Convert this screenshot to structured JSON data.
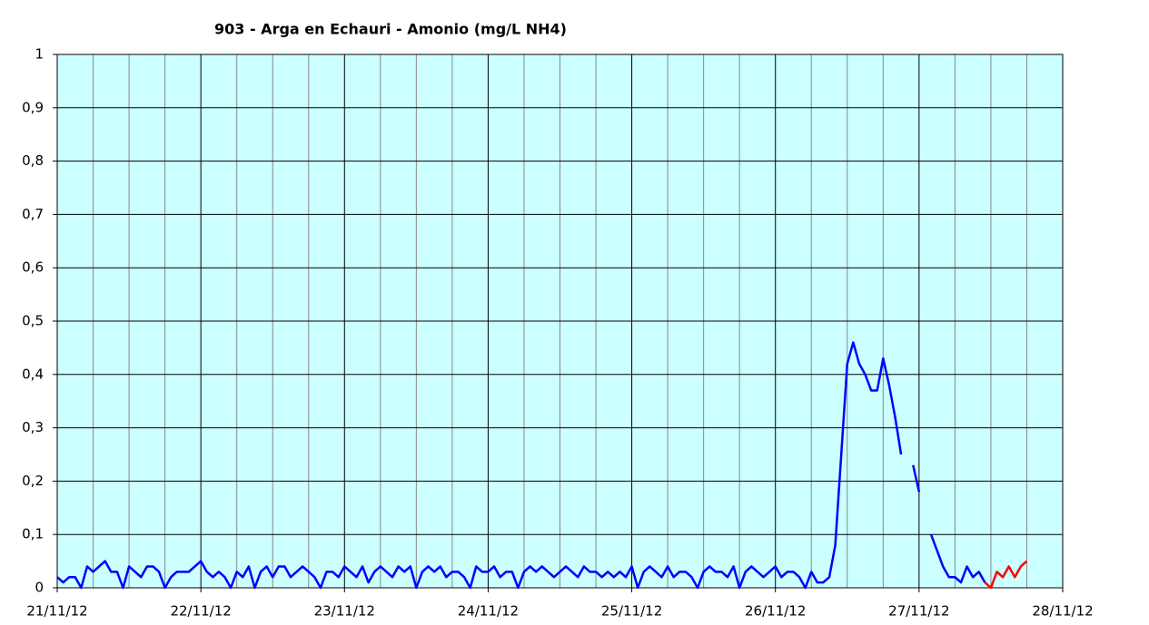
{
  "chart_data": {
    "type": "line",
    "title": "903 - Arga en Echauri - Amonio (mg/L NH4)",
    "background": "#ccffff",
    "grid": true,
    "xlim": [
      0,
      168
    ],
    "xticks": [
      {
        "value": 0,
        "label": "21/11/12"
      },
      {
        "value": 24,
        "label": "22/11/12"
      },
      {
        "value": 48,
        "label": "23/11/12"
      },
      {
        "value": 72,
        "label": "24/11/12"
      },
      {
        "value": 96,
        "label": "25/11/12"
      },
      {
        "value": 120,
        "label": "26/11/12"
      },
      {
        "value": 144,
        "label": "27/11/12"
      },
      {
        "value": 168,
        "label": "28/11/12"
      }
    ],
    "xminorticks": [
      6,
      12,
      18,
      30,
      36,
      42,
      54,
      60,
      66,
      78,
      84,
      90,
      102,
      108,
      114,
      126,
      132,
      138,
      150,
      156,
      162
    ],
    "ylim": [
      0,
      1
    ],
    "yticks": [
      0,
      {
        "value": 0.1,
        "label": "0,1"
      },
      {
        "value": 0.2,
        "label": "0,2"
      },
      {
        "value": 0.3,
        "label": "0,3"
      },
      {
        "value": 0.4,
        "label": "0,4"
      },
      {
        "value": 0.5,
        "label": "0,5"
      },
      {
        "value": 0.6,
        "label": "0,6"
      },
      {
        "value": 0.7,
        "label": "0,7"
      },
      {
        "value": 0.8,
        "label": "0,8"
      },
      {
        "value": 0.9,
        "label": "0,9"
      },
      1
    ],
    "series": [
      {
        "color": "#0000ff",
        "x": [
          0,
          1,
          2,
          3,
          4,
          5,
          6,
          7,
          8,
          9,
          10,
          11,
          12,
          13,
          14,
          15,
          16,
          17,
          18,
          19,
          20,
          21,
          22,
          23,
          24,
          25,
          26,
          27,
          28,
          29,
          30,
          31,
          32,
          33,
          34,
          35,
          36,
          37,
          38,
          39,
          40,
          41,
          42,
          43,
          44,
          45,
          46,
          47,
          48,
          49,
          50,
          51,
          52,
          53,
          54,
          55,
          56,
          57,
          58,
          59,
          60,
          61,
          62,
          63,
          64,
          65,
          66,
          67,
          68,
          69,
          70,
          71,
          72,
          73,
          74,
          75,
          76,
          77,
          78,
          79,
          80,
          81,
          82,
          83,
          84,
          85,
          86,
          87,
          88,
          89,
          90,
          91,
          92,
          93,
          94,
          95,
          96,
          97,
          98,
          99,
          100,
          101,
          102,
          103,
          104,
          105,
          106,
          107,
          108,
          109,
          110,
          111,
          112,
          113,
          114,
          115,
          116,
          117,
          118,
          119,
          120,
          121,
          122,
          123,
          124,
          125,
          126,
          127,
          128,
          129,
          130,
          131,
          132,
          133,
          134,
          135,
          136,
          137,
          138,
          139,
          140,
          141,
          142,
          143,
          144,
          145,
          146,
          147,
          148,
          149,
          150,
          151,
          152,
          153,
          154,
          155
        ],
        "values": [
          0.02,
          0.01,
          0.02,
          0.02,
          0.0,
          0.04,
          0.03,
          0.04,
          0.05,
          0.03,
          0.03,
          0.0,
          0.04,
          0.03,
          0.02,
          0.04,
          0.04,
          0.03,
          0.0,
          0.02,
          0.03,
          0.03,
          0.03,
          0.04,
          0.05,
          0.03,
          0.02,
          0.03,
          0.02,
          0.0,
          0.03,
          0.02,
          0.04,
          0.0,
          0.03,
          0.04,
          0.02,
          0.04,
          0.04,
          0.02,
          0.03,
          0.04,
          0.03,
          0.02,
          0.0,
          0.03,
          0.03,
          0.02,
          0.04,
          0.03,
          0.02,
          0.04,
          0.01,
          0.03,
          0.04,
          0.03,
          0.02,
          0.04,
          0.03,
          0.04,
          0.0,
          0.03,
          0.04,
          0.03,
          0.04,
          0.02,
          0.03,
          0.03,
          0.02,
          0.0,
          0.04,
          0.03,
          0.03,
          0.04,
          0.02,
          0.03,
          0.03,
          0.0,
          0.03,
          0.04,
          0.03,
          0.04,
          0.03,
          0.02,
          0.03,
          0.04,
          0.03,
          0.02,
          0.04,
          0.03,
          0.03,
          0.02,
          0.03,
          0.02,
          0.03,
          0.02,
          0.04,
          0.0,
          0.03,
          0.04,
          0.03,
          0.02,
          0.04,
          0.02,
          0.03,
          0.03,
          0.02,
          0.0,
          0.03,
          0.04,
          0.03,
          0.03,
          0.02,
          0.04,
          0.0,
          0.03,
          0.04,
          0.03,
          0.02,
          0.03,
          0.04,
          0.02,
          0.03,
          0.03,
          0.02,
          0.0,
          0.03,
          0.01,
          0.01,
          0.02,
          0.08,
          0.25,
          0.42,
          0.46,
          0.42,
          0.4,
          0.37,
          0.37,
          0.43,
          0.38,
          0.32,
          0.25,
          null,
          0.23,
          0.18,
          null,
          0.1,
          0.07,
          0.04,
          0.02,
          0.02,
          0.01,
          0.04,
          0.02,
          0.03,
          0.01
        ]
      },
      {
        "color": "#ff0000",
        "x": [
          155,
          156,
          157,
          158,
          159,
          160,
          161,
          162
        ],
        "values": [
          0.01,
          0.0,
          0.03,
          0.02,
          0.04,
          0.02,
          0.04,
          0.05
        ]
      }
    ]
  }
}
